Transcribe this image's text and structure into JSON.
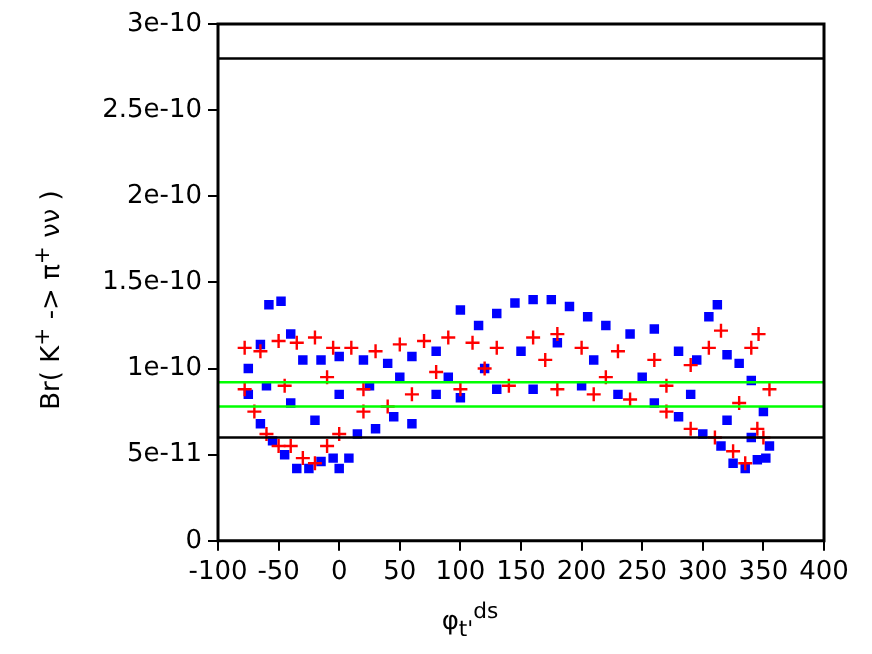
{
  "chart_data": {
    "type": "scatter",
    "xlabel": "φ$_{t'}$$^{ds}$",
    "ylabel": "Br( K$^{+}$ -> π$^{+}$ νν )",
    "xlim": [
      -100,
      400
    ],
    "xticks": [
      -100,
      -50,
      0,
      50,
      100,
      150,
      200,
      250,
      300,
      350,
      400
    ],
    "ylim": [
      0,
      3e-10
    ],
    "yticks": [
      0,
      {
        "value": 5e-11,
        "label": "5e-11"
      },
      {
        "value": 1e-10,
        "label": "1e-10"
      },
      {
        "value": 1.5e-10,
        "label": "1.5e-10"
      },
      {
        "value": 2e-10,
        "label": "2e-10"
      },
      {
        "value": 2.5e-10,
        "label": "2.5e-10"
      },
      {
        "value": 3e-10,
        "label": "3e-10"
      }
    ],
    "grid": false,
    "legend": false,
    "ref_lines": [
      {
        "axis": "y",
        "value": 2.8e-10,
        "color": "#000000"
      },
      {
        "axis": "y",
        "value": 6e-11,
        "color": "#000000"
      },
      {
        "axis": "y",
        "value": 9.2e-11,
        "color": "#00ff00"
      },
      {
        "axis": "y",
        "value": 7.8e-11,
        "color": "#00ff00"
      }
    ],
    "series": [
      {
        "color": "#ff0000",
        "marker": "cross",
        "x": [
          -78,
          -65,
          -50,
          -35,
          -20,
          -5,
          10,
          30,
          50,
          70,
          90,
          110,
          130,
          160,
          180,
          200,
          230,
          260,
          290,
          305,
          315,
          340,
          346,
          355,
          -78,
          -70,
          -60,
          -50,
          -40,
          -30,
          -20,
          -10,
          0,
          20,
          40,
          60,
          100,
          140,
          180,
          210,
          240,
          270,
          290,
          310,
          325,
          335,
          345,
          350,
          -45,
          -10,
          20,
          80,
          120,
          170,
          220,
          270,
          330
        ],
        "values": [
          1.12e-10,
          1.1e-10,
          1.16e-10,
          1.15e-10,
          1.18e-10,
          1.12e-10,
          1.12e-10,
          1.1e-10,
          1.14e-10,
          1.16e-10,
          1.18e-10,
          1.15e-10,
          1.12e-10,
          1.18e-10,
          1.2e-10,
          1.12e-10,
          1.1e-10,
          1.05e-10,
          1.02e-10,
          1.12e-10,
          1.22e-10,
          1.12e-10,
          1.2e-10,
          8.8e-11,
          8.8e-11,
          7.5e-11,
          6.2e-11,
          5.5e-11,
          5.5e-11,
          4.8e-11,
          4.5e-11,
          5.5e-11,
          6.2e-11,
          7.5e-11,
          7.8e-11,
          8.5e-11,
          8.8e-11,
          9e-11,
          8.8e-11,
          8.5e-11,
          8.2e-11,
          7.5e-11,
          6.5e-11,
          6e-11,
          5.2e-11,
          4.5e-11,
          6.5e-11,
          6e-11,
          9e-11,
          9.5e-11,
          8.8e-11,
          9.8e-11,
          1e-10,
          1.05e-10,
          9.5e-11,
          9e-11,
          8e-11
        ]
      },
      {
        "color": "#0000ff",
        "marker": "square",
        "x": [
          -75,
          -65,
          -58,
          -48,
          -40,
          -30,
          -15,
          0,
          20,
          40,
          60,
          80,
          100,
          115,
          130,
          145,
          160,
          175,
          190,
          205,
          220,
          240,
          260,
          280,
          295,
          305,
          312,
          320,
          330,
          340,
          350,
          355,
          -75,
          -65,
          -55,
          -45,
          -35,
          -25,
          -15,
          -5,
          0,
          8,
          15,
          30,
          45,
          60,
          80,
          100,
          130,
          160,
          200,
          230,
          260,
          280,
          300,
          315,
          325,
          335,
          345,
          352,
          -60,
          -40,
          -20,
          0,
          25,
          50,
          90,
          120,
          150,
          180,
          210,
          250,
          290,
          320,
          340
        ],
        "values": [
          1e-10,
          1.14e-10,
          1.37e-10,
          1.39e-10,
          1.2e-10,
          1.05e-10,
          1.05e-10,
          1.07e-10,
          1.05e-10,
          1.03e-10,
          1.07e-10,
          1.1e-10,
          1.34e-10,
          1.25e-10,
          1.32e-10,
          1.38e-10,
          1.4e-10,
          1.4e-10,
          1.36e-10,
          1.3e-10,
          1.25e-10,
          1.2e-10,
          1.23e-10,
          1.1e-10,
          1.05e-10,
          1.3e-10,
          1.37e-10,
          1.08e-10,
          1.03e-10,
          9.3e-11,
          7.5e-11,
          5.5e-11,
          8.5e-11,
          6.8e-11,
          5.8e-11,
          5e-11,
          4.2e-11,
          4.2e-11,
          4.6e-11,
          4.8e-11,
          4.2e-11,
          4.8e-11,
          6.2e-11,
          6.5e-11,
          7.2e-11,
          6.8e-11,
          8.5e-11,
          8.3e-11,
          8.8e-11,
          8.8e-11,
          9e-11,
          8.5e-11,
          8e-11,
          7.2e-11,
          6.2e-11,
          5.5e-11,
          4.5e-11,
          4.2e-11,
          4.7e-11,
          4.8e-11,
          9e-11,
          8e-11,
          7e-11,
          8.5e-11,
          9e-11,
          9.5e-11,
          9.5e-11,
          1e-10,
          1.1e-10,
          1.15e-10,
          1.05e-10,
          9.5e-11,
          8.5e-11,
          7e-11,
          6e-11
        ]
      }
    ]
  }
}
